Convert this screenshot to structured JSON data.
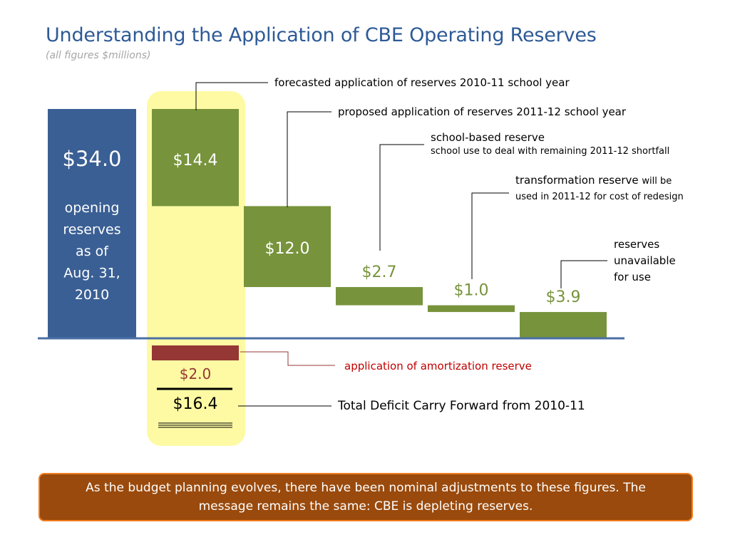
{
  "page": {
    "title": "Understanding the Application of CBE Operating Reserves",
    "subtitle": "(all figures $millions)",
    "banner": "As the budget planning evolves, there have been nominal adjustments to these figures. The message remains the same: CBE is depleting reserves."
  },
  "colors": {
    "title": "#2d5a96",
    "opening_bar": "#3a5f94",
    "green_bar": "#77933c",
    "red_bar": "#953735",
    "highlight": "#fdfaa3",
    "baseline": "#4a6fa5",
    "green_text": "#77933c",
    "red_text": "#953735",
    "banner_fill": "#9a4a0c",
    "banner_border": "#f07c1e"
  },
  "chart_data": {
    "type": "waterfall",
    "units": "$millions",
    "ylim": [
      -2.0,
      34.0
    ],
    "opening": {
      "value": 34.0,
      "label": "$34.0",
      "caption": [
        "opening",
        "reserves",
        "as of",
        "Aug. 31,",
        "2010"
      ]
    },
    "steps": [
      {
        "id": "step-2010-11",
        "value": 14.4,
        "label": "$14.4",
        "label_position": "inside"
      },
      {
        "id": "step-2011-12",
        "value": 12.0,
        "label": "$12.0",
        "label_position": "inside"
      },
      {
        "id": "step-school-based",
        "value": 2.7,
        "label": "$2.7",
        "label_position": "above"
      },
      {
        "id": "step-transformation",
        "value": 1.0,
        "label": "$1.0",
        "label_position": "above"
      },
      {
        "id": "step-unavailable",
        "value": 3.9,
        "label": "$3.9",
        "label_position": "above"
      }
    ],
    "amortization": {
      "value": 2.0,
      "label": "$2.0"
    },
    "total": {
      "value": 16.4,
      "label": "$16.4"
    }
  },
  "callouts": {
    "forecasted": "forecasted application of reserves 2010-11 school year",
    "proposed": "proposed application of reserves 2011-12 school year",
    "school_based_title": "school-based reserve",
    "school_based_detail": "school use to deal with remaining 2011-12 shortfall",
    "transformation_title": "transformation reserve",
    "transformation_detail": "will be used in 2011-12 for cost of redesign",
    "unavailable": "reserves unavailable for use",
    "amortization": "application of amortization reserve",
    "total_deficit": "Total Deficit Carry Forward from 2010-11"
  }
}
